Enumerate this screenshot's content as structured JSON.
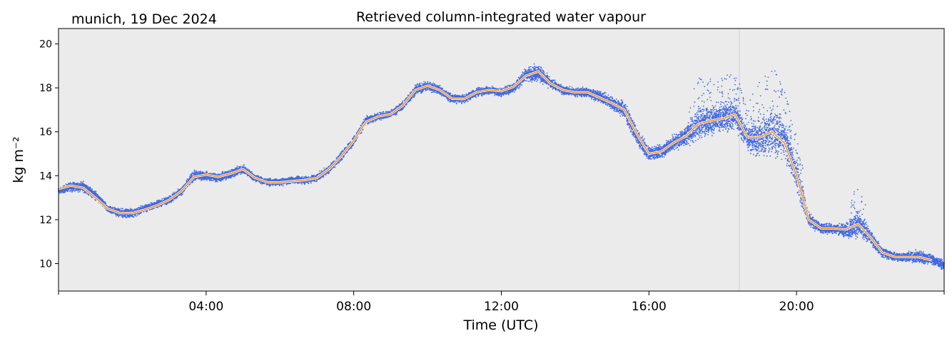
{
  "location_label": "munich, 19 Dec 2024",
  "chart_data": {
    "type": "scatter",
    "title": "Retrieved column-integrated water vapour",
    "xlabel": "Time (UTC)",
    "ylabel": "kg m⁻²",
    "xlim": [
      0,
      24
    ],
    "ylim": [
      8.75,
      20.7
    ],
    "x_unit": "hours UTC",
    "x_ticks": [
      {
        "x": 4,
        "label": "04:00"
      },
      {
        "x": 8,
        "label": "08:00"
      },
      {
        "x": 12,
        "label": "12:00"
      },
      {
        "x": 16,
        "label": "16:00"
      },
      {
        "x": 20,
        "label": "20:00"
      }
    ],
    "y_ticks": [
      10,
      12,
      14,
      16,
      18,
      20
    ],
    "grid": false,
    "vertical_marker_x": 18.45,
    "colors": {
      "background": "#ebebeb",
      "scatter": "#4169e1",
      "smoothed": "#ff8c1a"
    },
    "series": [
      {
        "kind": "scatter",
        "x": [
          0.0,
          0.33,
          0.67,
          1.0,
          1.33,
          1.67,
          2.0,
          2.33,
          2.67,
          3.0,
          3.33,
          3.67,
          4.0,
          4.33,
          4.67,
          5.0,
          5.33,
          5.67,
          6.0,
          6.33,
          6.67,
          7.0,
          7.33,
          7.67,
          8.0,
          8.33,
          8.67,
          9.0,
          9.33,
          9.67,
          10.0,
          10.33,
          10.67,
          11.0,
          11.33,
          11.67,
          12.0,
          12.33,
          12.67,
          13.0,
          13.33,
          13.67,
          14.0,
          14.33,
          14.67,
          15.0,
          15.33,
          15.67,
          16.0,
          16.33,
          16.67,
          17.0,
          17.33,
          17.67,
          18.0,
          18.33,
          18.67,
          19.0,
          19.33,
          19.67,
          20.0,
          20.33,
          20.67,
          21.0,
          21.33,
          21.67,
          22.0,
          22.33,
          22.67,
          23.0,
          23.33,
          23.67,
          24.0
        ],
        "y": [
          13.3,
          13.5,
          13.5,
          13.1,
          12.5,
          12.3,
          12.3,
          12.5,
          12.7,
          12.9,
          13.3,
          14.0,
          14.0,
          13.9,
          14.1,
          14.3,
          13.9,
          13.7,
          13.7,
          13.8,
          13.8,
          13.9,
          14.3,
          14.9,
          15.6,
          16.5,
          16.7,
          16.8,
          17.2,
          17.9,
          18.1,
          17.9,
          17.5,
          17.5,
          17.8,
          17.9,
          17.8,
          18.0,
          18.6,
          18.7,
          18.2,
          17.9,
          17.8,
          17.8,
          17.6,
          17.3,
          17.0,
          15.8,
          15.0,
          15.1,
          15.5,
          15.8,
          16.4,
          16.5,
          16.6,
          16.8,
          15.7,
          15.7,
          16.0,
          15.7,
          14.0,
          12.0,
          11.6,
          11.6,
          11.5,
          11.8,
          11.2,
          10.5,
          10.3,
          10.3,
          10.3,
          10.2,
          9.9
        ],
        "y_spread": [
          0.18,
          0.25,
          0.3,
          0.25,
          0.2,
          0.25,
          0.25,
          0.22,
          0.2,
          0.22,
          0.25,
          0.3,
          0.25,
          0.25,
          0.3,
          0.25,
          0.22,
          0.2,
          0.2,
          0.2,
          0.22,
          0.22,
          0.22,
          0.25,
          0.25,
          0.25,
          0.2,
          0.22,
          0.25,
          0.3,
          0.3,
          0.25,
          0.25,
          0.22,
          0.25,
          0.25,
          0.25,
          0.3,
          0.4,
          0.5,
          0.3,
          0.25,
          0.25,
          0.3,
          0.3,
          0.4,
          0.5,
          0.5,
          0.4,
          0.4,
          0.45,
          0.55,
          1.0,
          0.9,
          0.9,
          0.9,
          0.7,
          1.2,
          1.4,
          1.0,
          0.9,
          0.4,
          0.3,
          0.3,
          0.4,
          0.9,
          0.4,
          0.3,
          0.25,
          0.3,
          0.4,
          0.3,
          0.25
        ]
      },
      {
        "kind": "line",
        "x": [
          0.0,
          0.33,
          0.67,
          1.0,
          1.33,
          1.67,
          2.0,
          2.33,
          2.67,
          3.0,
          3.33,
          3.67,
          4.0,
          4.33,
          4.67,
          5.0,
          5.33,
          5.67,
          6.0,
          6.33,
          6.67,
          7.0,
          7.33,
          7.67,
          8.0,
          8.33,
          8.67,
          9.0,
          9.33,
          9.67,
          10.0,
          10.33,
          10.67,
          11.0,
          11.33,
          11.67,
          12.0,
          12.33,
          12.67,
          13.0,
          13.33,
          13.67,
          14.0,
          14.33,
          14.67,
          15.0,
          15.33,
          15.67,
          16.0,
          16.33,
          16.67,
          17.0,
          17.33,
          17.67,
          18.0,
          18.33,
          18.67,
          19.0,
          19.33,
          19.67,
          20.0,
          20.33,
          20.67,
          21.0,
          21.33,
          21.67,
          22.0,
          22.33,
          22.67,
          23.0,
          23.33,
          23.67
        ],
        "y": [
          13.4,
          13.55,
          13.45,
          13.0,
          12.5,
          12.3,
          12.3,
          12.45,
          12.65,
          12.9,
          13.3,
          13.95,
          14.05,
          13.95,
          14.1,
          14.3,
          13.9,
          13.7,
          13.7,
          13.75,
          13.8,
          13.9,
          14.3,
          14.9,
          15.6,
          16.45,
          16.7,
          16.8,
          17.2,
          17.9,
          18.1,
          17.9,
          17.5,
          17.5,
          17.8,
          17.9,
          17.85,
          18.05,
          18.55,
          18.75,
          18.2,
          17.9,
          17.8,
          17.8,
          17.55,
          17.3,
          17.0,
          15.9,
          15.0,
          15.1,
          15.5,
          15.8,
          16.35,
          16.5,
          16.6,
          16.8,
          15.75,
          15.75,
          16.0,
          15.5,
          14.0,
          12.0,
          11.6,
          11.6,
          11.55,
          11.8,
          11.2,
          10.5,
          10.3,
          10.3,
          10.3,
          10.15
        ]
      }
    ]
  }
}
